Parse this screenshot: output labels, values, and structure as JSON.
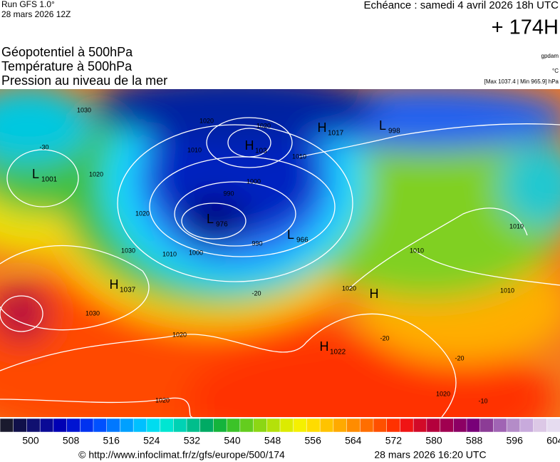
{
  "header": {
    "run": "Run GFS 1.0°",
    "run_date": "28 mars 2026 12Z",
    "valid": "Echéance : samedi 4 avril 2026 18h UTC",
    "lead": "+ 174H",
    "fields": [
      "Géopotentiel à 500hPa",
      "Température à 500hPa",
      "Pression au niveau de la mer"
    ],
    "units": [
      "gpdam",
      "°C",
      "[Max 1037.4 | Min 965.9] hPa"
    ]
  },
  "map": {
    "centers": [
      {
        "letter": "L",
        "value": "1001"
      },
      {
        "letter": "H",
        "value": "103"
      },
      {
        "letter": "H",
        "value": "1017"
      },
      {
        "letter": "L",
        "value": "998"
      },
      {
        "letter": "L",
        "value": "976"
      },
      {
        "letter": "L",
        "value": "966"
      },
      {
        "letter": "H",
        "value": "1037"
      },
      {
        "letter": "H"
      },
      {
        "letter": "H",
        "value": "1022"
      }
    ],
    "isobar_labels": [
      "1030",
      "1020",
      "1020",
      "1010",
      "1010",
      "1000",
      "990",
      "990",
      "1000",
      "1020",
      "1020",
      "1010",
      "1030",
      "1030",
      "1020",
      "1020",
      "1020",
      "1020",
      "1010",
      "1010",
      "1010"
    ],
    "isotherm_labels": [
      "-30",
      "-20",
      "-20",
      "-20",
      "-10"
    ]
  },
  "colorbar": {
    "labels": [
      500,
      508,
      516,
      524,
      532,
      540,
      548,
      556,
      564,
      572,
      580,
      588,
      596,
      604
    ],
    "colors": [
      "#1a1a2e",
      "#10104a",
      "#101070",
      "#0a0a96",
      "#0000b4",
      "#0014d2",
      "#0032f0",
      "#0050ff",
      "#0078ff",
      "#00a0ff",
      "#00c0ff",
      "#00dcf0",
      "#00e6d2",
      "#00d2b4",
      "#00be8c",
      "#00aa64",
      "#14b43c",
      "#3cc328",
      "#64cd1e",
      "#8cd714",
      "#b4e10a",
      "#dceb00",
      "#f5f000",
      "#ffdc00",
      "#ffc300",
      "#ffaa00",
      "#ff8c00",
      "#ff6e00",
      "#ff5000",
      "#ff3200",
      "#f01414",
      "#d20a28",
      "#b4003c",
      "#a00050",
      "#8c0064",
      "#780078",
      "#8c3c96",
      "#a064b4",
      "#b48cc8",
      "#c8aadc",
      "#dcc8e6",
      "#e6dcf0"
    ]
  },
  "footer": {
    "source": "© http://www.infoclimat.fr/z/gfs/europe/500/174",
    "generated": "28 mars 2026 16:20 UTC"
  }
}
